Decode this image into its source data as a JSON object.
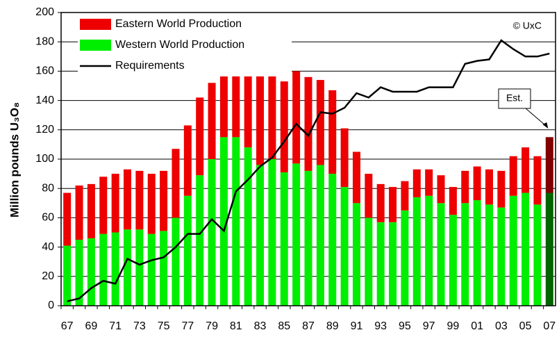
{
  "chart_data": {
    "type": "stacked_bar_line",
    "y_label": "Million pounds U₃O₈",
    "annotations": [
      "© UxC"
    ],
    "estimate": {
      "text": "Est.",
      "category": "07"
    },
    "categories": [
      "67",
      null,
      "69",
      null,
      "71",
      null,
      "73",
      null,
      "75",
      null,
      "77",
      null,
      "79",
      null,
      "81",
      null,
      "83",
      null,
      "85",
      null,
      "87",
      null,
      "89",
      null,
      "91",
      null,
      "93",
      null,
      "95",
      null,
      "97",
      null,
      "99",
      null,
      "01",
      null,
      "03",
      null,
      "05",
      null,
      "07"
    ],
    "series": [
      {
        "name": "Western World Production",
        "color": "#00ee00",
        "estimate_color": "#006400",
        "values": [
          41,
          45,
          46,
          49,
          50,
          52,
          52,
          49,
          51,
          60,
          75,
          89,
          100,
          115,
          115,
          108,
          96,
          100,
          91,
          97,
          92,
          96,
          90,
          81,
          70,
          60,
          57,
          57,
          65,
          74,
          75,
          70,
          62,
          70,
          72,
          69,
          67,
          75,
          77,
          69,
          77
        ]
      },
      {
        "name": "Eastern World Production",
        "color": "#ee0000",
        "estimate_color": "#800000",
        "values": [
          36,
          37,
          37,
          39,
          40,
          41,
          40,
          41,
          41,
          47,
          48,
          53,
          52,
          55,
          57,
          58,
          61,
          62,
          62,
          63,
          64,
          58,
          57,
          40,
          35,
          30,
          26,
          24,
          20,
          19,
          18,
          19,
          19,
          22,
          23,
          24,
          25,
          27,
          31,
          33,
          38
        ]
      },
      {
        "name": "Requirements",
        "type": "line",
        "color": "#000000",
        "values": [
          3,
          5,
          12,
          17,
          15,
          32,
          28,
          31,
          33,
          40,
          49,
          49,
          59,
          51,
          78,
          86,
          95,
          101,
          112,
          124,
          116,
          132,
          131,
          135,
          145,
          142,
          149,
          146,
          146,
          146,
          149,
          149,
          149,
          165,
          167,
          168,
          181,
          175,
          170,
          170,
          172
        ]
      }
    ],
    "ylim": [
      0,
      200
    ],
    "yticks": [
      0,
      20,
      40,
      60,
      80,
      100,
      120,
      140,
      160,
      180,
      200
    ],
    "grid": true
  }
}
